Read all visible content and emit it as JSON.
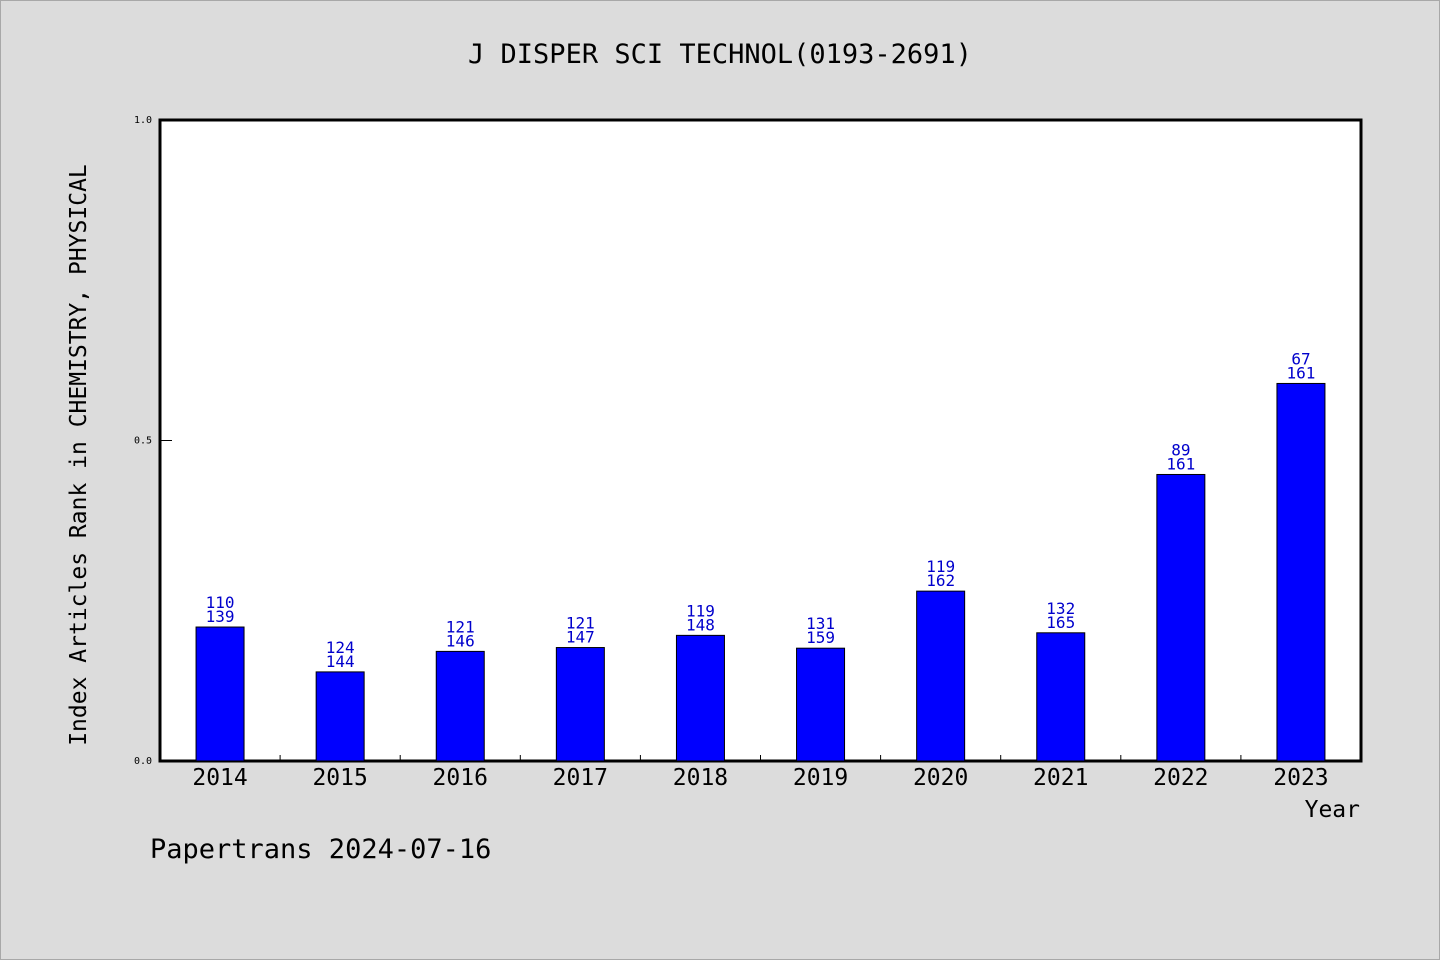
{
  "footer": {
    "text": "Papertrans 2024-07-16"
  },
  "chart_data": {
    "type": "bar",
    "title": "J DISPER SCI TECHNOL(0193-2691)",
    "xlabel": "Year",
    "ylabel": "Index Articles Rank in CHEMISTRY, PHYSICAL",
    "ylim": [
      0,
      1
    ],
    "yticks": [
      "0.0",
      "0.5",
      "1.0"
    ],
    "grid": false,
    "categories": [
      "2014",
      "2015",
      "2016",
      "2017",
      "2018",
      "2019",
      "2020",
      "2021",
      "2022",
      "2023"
    ],
    "values": [
      0.209,
      0.139,
      0.171,
      0.177,
      0.196,
      0.176,
      0.265,
      0.2,
      0.447,
      0.589
    ],
    "label_top": [
      "110",
      "124",
      "121",
      "121",
      "119",
      "131",
      "119",
      "132",
      "89",
      "67"
    ],
    "label_bottom": [
      "139",
      "144",
      "146",
      "147",
      "148",
      "159",
      "162",
      "165",
      "161",
      "161"
    ],
    "bar_color": "#0000ff",
    "label_color": "#0000cc"
  }
}
